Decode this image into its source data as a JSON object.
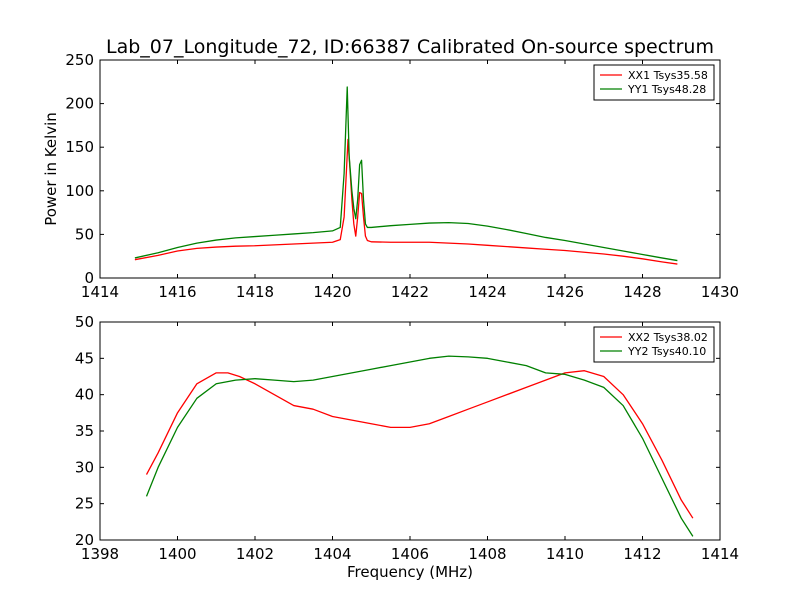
{
  "figure": {
    "title": "Lab_07_Longitude_72, ID:66387 Calibrated On-source spectrum"
  },
  "chart_data": [
    {
      "type": "line",
      "title": "Lab_07_Longitude_72, ID:66387 Calibrated On-source spectrum",
      "xlabel": "",
      "ylabel": "Power in Kelvin",
      "xlim": [
        1414,
        1430
      ],
      "ylim": [
        0,
        250
      ],
      "xticks": [
        1414,
        1416,
        1418,
        1420,
        1422,
        1424,
        1426,
        1428,
        1430
      ],
      "yticks": [
        0,
        50,
        100,
        150,
        200,
        250
      ],
      "grid": false,
      "legend_position": "top-right",
      "series": [
        {
          "name": "XX1 Tsys35.58",
          "color": "#ff0000",
          "x": [
            1414.9,
            1415.5,
            1416.0,
            1416.5,
            1417.0,
            1417.5,
            1418.0,
            1418.5,
            1419.0,
            1419.5,
            1420.0,
            1420.2,
            1420.3,
            1420.4,
            1420.45,
            1420.5,
            1420.55,
            1420.6,
            1420.65,
            1420.7,
            1420.75,
            1420.8,
            1420.85,
            1420.9,
            1421.0,
            1421.5,
            1422.0,
            1422.5,
            1423.0,
            1423.5,
            1424.0,
            1424.5,
            1425.0,
            1425.5,
            1426.0,
            1426.5,
            1427.0,
            1427.5,
            1428.0,
            1428.5,
            1428.9
          ],
          "y": [
            21,
            26,
            31,
            34,
            35.5,
            36.5,
            37,
            38,
            39,
            40,
            41,
            44,
            70,
            159,
            125,
            90,
            62,
            48,
            70,
            98,
            97,
            70,
            48,
            43,
            41.5,
            41,
            41,
            41,
            40,
            39,
            37.5,
            36,
            34.5,
            33,
            31.5,
            29.5,
            27.5,
            25,
            22,
            18.5,
            16
          ]
        },
        {
          "name": "YY1 Tsys48.28",
          "color": "#008000",
          "x": [
            1414.9,
            1415.5,
            1416.0,
            1416.5,
            1417.0,
            1417.5,
            1418.0,
            1418.5,
            1419.0,
            1419.5,
            1420.0,
            1420.2,
            1420.3,
            1420.38,
            1420.43,
            1420.5,
            1420.55,
            1420.6,
            1420.65,
            1420.7,
            1420.75,
            1420.8,
            1420.85,
            1420.9,
            1421.0,
            1421.5,
            1422.0,
            1422.5,
            1423.0,
            1423.5,
            1424.0,
            1424.5,
            1425.0,
            1425.5,
            1426.0,
            1426.5,
            1427.0,
            1427.5,
            1428.0,
            1428.5,
            1428.9
          ],
          "y": [
            23,
            29,
            35,
            40,
            43.5,
            46,
            47.5,
            49,
            50.5,
            52,
            54,
            58,
            120,
            219,
            140,
            100,
            80,
            68,
            90,
            130,
            135,
            90,
            62,
            58,
            58,
            60,
            61.5,
            63,
            63.5,
            62.5,
            59.5,
            55.5,
            51,
            46.5,
            43,
            39,
            35,
            31,
            27,
            23,
            20
          ]
        }
      ]
    },
    {
      "type": "line",
      "title": "",
      "xlabel": "Frequency (MHz)",
      "ylabel": "",
      "xlim": [
        1398,
        1414
      ],
      "ylim": [
        20,
        50
      ],
      "xticks": [
        1398,
        1400,
        1402,
        1404,
        1406,
        1408,
        1410,
        1412,
        1414
      ],
      "yticks": [
        20,
        25,
        30,
        35,
        40,
        45,
        50
      ],
      "grid": false,
      "legend_position": "top-right",
      "series": [
        {
          "name": "XX2 Tsys38.02",
          "color": "#ff0000",
          "x": [
            1399.2,
            1399.5,
            1400.0,
            1400.5,
            1401.0,
            1401.3,
            1401.6,
            1402.0,
            1402.5,
            1403.0,
            1403.5,
            1404.0,
            1404.5,
            1405.0,
            1405.5,
            1406.0,
            1406.5,
            1407.0,
            1407.5,
            1408.0,
            1408.5,
            1409.0,
            1409.5,
            1410.0,
            1410.5,
            1411.0,
            1411.5,
            1412.0,
            1412.5,
            1413.0,
            1413.3
          ],
          "y": [
            29,
            32,
            37.5,
            41.5,
            43,
            43,
            42.5,
            41.5,
            40,
            38.5,
            38,
            37,
            36.5,
            36,
            35.5,
            35.5,
            36,
            37,
            38,
            39,
            40,
            41,
            42,
            43,
            43.3,
            42.5,
            40,
            36,
            31,
            25.5,
            23
          ]
        },
        {
          "name": "YY2 Tsys40.10",
          "color": "#008000",
          "x": [
            1399.2,
            1399.5,
            1400.0,
            1400.5,
            1401.0,
            1401.5,
            1402.0,
            1402.5,
            1403.0,
            1403.5,
            1404.0,
            1404.5,
            1405.0,
            1405.5,
            1406.0,
            1406.5,
            1407.0,
            1407.5,
            1408.0,
            1408.5,
            1409.0,
            1409.5,
            1410.0,
            1410.5,
            1411.0,
            1411.5,
            1412.0,
            1412.5,
            1413.0,
            1413.3
          ],
          "y": [
            26,
            30,
            35.5,
            39.5,
            41.5,
            42,
            42.2,
            42,
            41.8,
            42,
            42.5,
            43,
            43.5,
            44,
            44.5,
            45,
            45.3,
            45.2,
            45,
            44.5,
            44,
            43,
            42.8,
            42,
            41,
            38.5,
            34,
            28.5,
            23,
            20.5
          ]
        }
      ]
    }
  ]
}
